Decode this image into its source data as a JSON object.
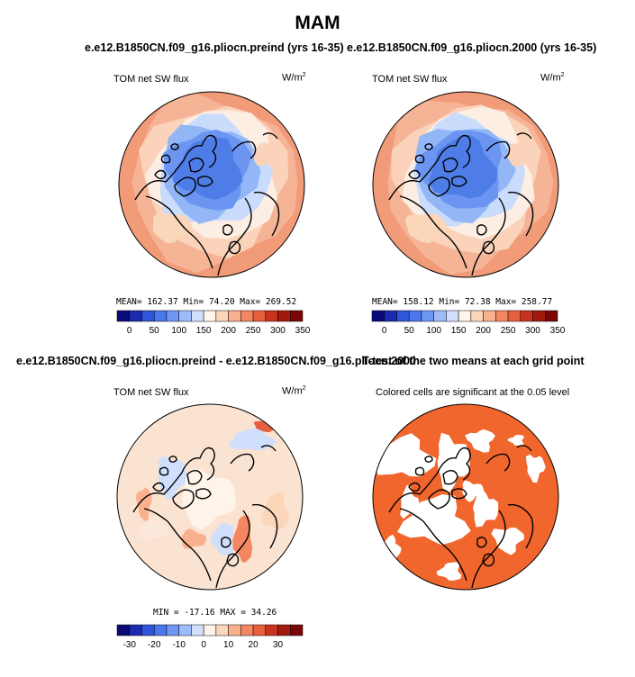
{
  "figure": {
    "season": "MAM",
    "run_a_label": "e.e12.B1850CN.f09_g16.pliocn.preind (yrs 16-35)",
    "run_b_label": "e.e12.B1850CN.f09_g16.pliocn.2000 (yrs 16-35)",
    "diff_label": "e.e12.B1850CN.f09_g16.pliocn.preind - e.e12.B1850CN.f09_g16.pliocn.2000",
    "ttest_label": "T-test of the two means at each grid point",
    "variable": "TOM net SW flux",
    "units_base": "W/m",
    "units_exp": "2",
    "significance_note": "Colored cells are significant at the 0.05 level"
  },
  "chart_data": [
    {
      "type": "heatmap",
      "projection": "north-polar-stereographic",
      "title": "e.e12.B1850CN.f09_g16.pliocn.preind (yrs 16-35)",
      "variable": "TOM net SW flux",
      "units": "W/m2",
      "stats": {
        "mean": "162.37",
        "min": "74.20",
        "max": "269.52"
      },
      "stats_text": "MEAN= 162.37  Min=  74.20  Max= 269.52",
      "colorbar": {
        "colors": [
          "#0a0a78",
          "#1b2bb0",
          "#2f55d8",
          "#4a76ee",
          "#6f98f5",
          "#9ebbf9",
          "#cfdffc",
          "#fef4ea",
          "#fcd6b9",
          "#f9b08c",
          "#f48762",
          "#e85f3d",
          "#c8321e",
          "#a01a0e",
          "#7a0606"
        ],
        "tick_labels": [
          "0",
          "50",
          "100",
          "150",
          "200",
          "250",
          "300",
          "350"
        ]
      }
    },
    {
      "type": "heatmap",
      "projection": "north-polar-stereographic",
      "title": "e.e12.B1850CN.f09_g16.pliocn.2000 (yrs 16-35)",
      "variable": "TOM net SW flux",
      "units": "W/m2",
      "stats": {
        "mean": "158.12",
        "min": "72.38",
        "max": "258.77"
      },
      "stats_text": "MEAN= 158.12  Min=  72.38  Max= 258.77",
      "colorbar": {
        "colors": [
          "#0a0a78",
          "#1b2bb0",
          "#2f55d8",
          "#4a76ee",
          "#6f98f5",
          "#9ebbf9",
          "#cfdffc",
          "#fef4ea",
          "#fcd6b9",
          "#f9b08c",
          "#f48762",
          "#e85f3d",
          "#c8321e",
          "#a01a0e",
          "#7a0606"
        ],
        "tick_labels": [
          "0",
          "50",
          "100",
          "150",
          "200",
          "250",
          "300",
          "350"
        ]
      }
    },
    {
      "type": "heatmap",
      "projection": "north-polar-stereographic",
      "title": "e.e12.B1850CN.f09_g16.pliocn.preind - e.e12.B1850CN.f09_g16.pliocn.2000",
      "variable": "TOM net SW flux",
      "units": "W/m2",
      "stats": {
        "min": "-17.16",
        "max": "34.26"
      },
      "stats_text": "MIN = -17.16  MAX =  34.26",
      "colorbar": {
        "colors": [
          "#0a0a78",
          "#1b2bb0",
          "#2f55d8",
          "#4a76ee",
          "#6f98f5",
          "#9ebbf9",
          "#cfdffc",
          "#fef4ea",
          "#fcd6b9",
          "#f9b08c",
          "#f48762",
          "#e85f3d",
          "#c8321e",
          "#a01a0e",
          "#7a0606"
        ],
        "tick_labels": [
          "-30",
          "-20",
          "-10",
          "0",
          "10",
          "20",
          "30"
        ]
      }
    },
    {
      "type": "heatmap",
      "projection": "north-polar-stereographic",
      "title": "T-test of the two means at each grid point",
      "subtitle": "Colored cells are significant at the 0.05 level",
      "significant_color": "#f0662d"
    }
  ],
  "colors": {
    "ocean_warm": "#f6b497",
    "ice_blue": "#4f7de8",
    "diff_bg": "#fbe3d1",
    "significant": "#f0662d"
  }
}
